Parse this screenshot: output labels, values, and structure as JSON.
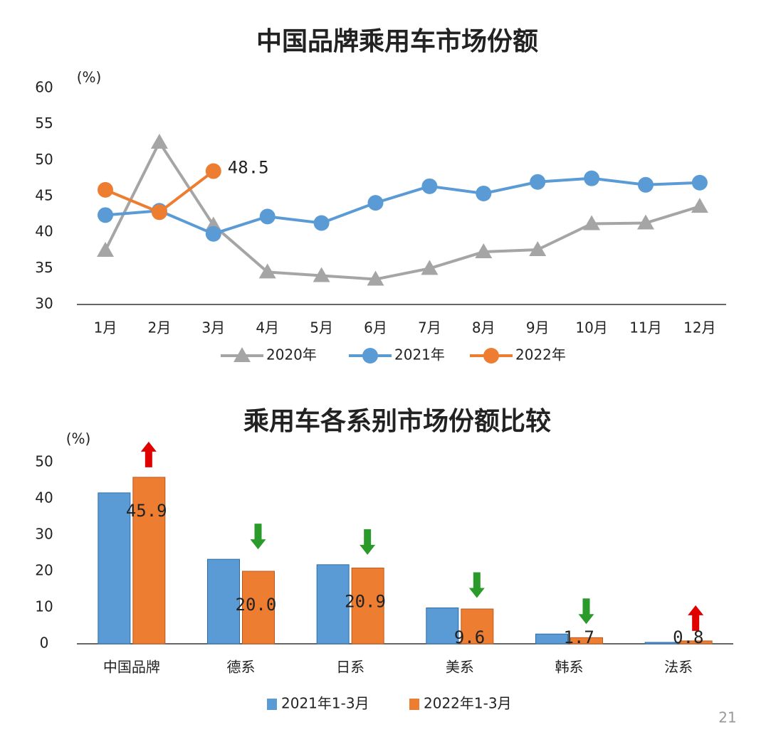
{
  "chart_data": [
    {
      "type": "line",
      "title": "中国品牌乘用车市场份额",
      "y_unit": "(%)",
      "categories": [
        "1月",
        "2月",
        "3月",
        "4月",
        "5月",
        "6月",
        "7月",
        "8月",
        "9月",
        "10月",
        "11月",
        "12月"
      ],
      "series": [
        {
          "name": "2020年",
          "color": "#a5a5a5",
          "marker": "triangle",
          "values": [
            37.5,
            52.5,
            41,
            34.5,
            34,
            33.5,
            35,
            37.3,
            37.6,
            41.2,
            41.3,
            43.6
          ]
        },
        {
          "name": "2021年",
          "color": "#5b9bd5",
          "marker": "circle",
          "values": [
            42.4,
            43,
            39.8,
            42.2,
            41.3,
            44.1,
            46.4,
            45.4,
            47,
            47.5,
            46.6,
            46.9
          ]
        },
        {
          "name": "2022年",
          "color": "#ed7d31",
          "marker": "circle",
          "values": [
            45.9,
            42.8,
            48.5,
            null,
            null,
            null,
            null,
            null,
            null,
            null,
            null,
            null
          ],
          "value_labels": [
            null,
            null,
            "48.5",
            null,
            null,
            null,
            null,
            null,
            null,
            null,
            null,
            null
          ]
        }
      ],
      "ylim": [
        30,
        60
      ],
      "yticks": [
        30,
        35,
        40,
        45,
        50,
        55,
        60
      ],
      "grid": false,
      "legend": "bottom"
    },
    {
      "type": "bar",
      "title": "乘用车各系别市场份额比较",
      "y_unit": "(%)",
      "categories": [
        "中国品牌",
        "德系",
        "日系",
        "美系",
        "韩系",
        "法系"
      ],
      "series": [
        {
          "name": "2021年1-3月",
          "color": "#5b9bd5",
          "values": [
            41.6,
            23.3,
            21.8,
            9.9,
            2.7,
            0.4
          ]
        },
        {
          "name": "2022年1-3月",
          "color": "#ed7d31",
          "values": [
            45.9,
            20.0,
            20.9,
            9.6,
            1.7,
            0.8
          ],
          "value_labels": [
            "45.9",
            "20.0",
            "20.9",
            "9.6",
            "1.7",
            "0.8"
          ]
        }
      ],
      "ylim": [
        0,
        50
      ],
      "yticks": [
        0,
        10,
        20,
        30,
        40,
        50
      ],
      "grid": false,
      "legend": "bottom"
    }
  ],
  "page_number": "21"
}
